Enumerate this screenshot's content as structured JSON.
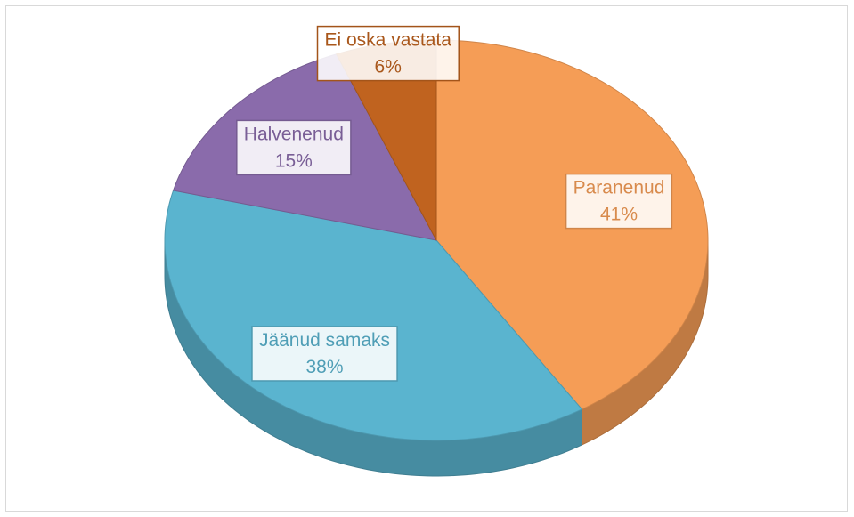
{
  "chart_data": {
    "type": "pie",
    "categories": [
      "Paranenud",
      "Jäänud samaks",
      "Halvenenud",
      "Ei oska vastata"
    ],
    "values": [
      41,
      38,
      15,
      6
    ],
    "value_labels": [
      "41%",
      "38%",
      "15%",
      "6%"
    ],
    "colors": [
      "#f59d56",
      "#5ab4cf",
      "#8a6bab",
      "#c0631f"
    ]
  }
}
